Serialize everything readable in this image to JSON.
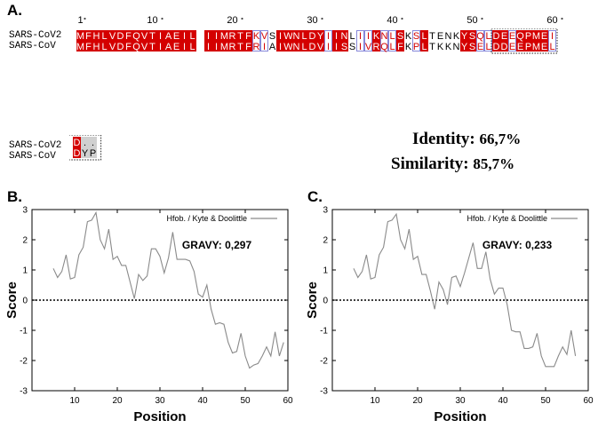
{
  "labels": {
    "a": "A.",
    "b": "B.",
    "c": "C."
  },
  "alignment": {
    "ruler": [
      "1",
      "10",
      "20",
      "30",
      "40",
      "50",
      "60"
    ],
    "names": [
      "SARS-CoV2",
      "SARS-CoV"
    ],
    "row1": {
      "seq1": "MFHLVDFQVTIAEILLIIMRTFKVSIWNLDYIINLIIKNLSKSLTENKYSQLDEEQPMEI",
      "seq2": "MFHLVDFQVTIAEILIIIMRTFRIAIWNLDVIISSIVRQLFKPLTKKNYSELDDEEPMEL",
      "styles": "RRRRRRRRRRRRRRRWRRRRRRbbTRRRRRRbRRTwbRbwRTwRTTTTRRbwRRbRRRRb"
    },
    "row2": {
      "seq1": "D..",
      "seq2": "DYP",
      "styles": "Rgg"
    }
  },
  "stats": {
    "identity_label": "Identity",
    "identity_value": "66,7%",
    "similarity_label": "Similarity",
    "similarity_value": "85,7%"
  },
  "chart_data": [
    {
      "type": "line",
      "panel": "B.",
      "xlabel": "Position",
      "ylabel": "Score",
      "xlim": [
        0,
        60
      ],
      "ylim": [
        -3,
        3
      ],
      "xticks": [
        10,
        20,
        30,
        40,
        50,
        60
      ],
      "yticks": [
        -3,
        -2,
        -1,
        0,
        1,
        2,
        3
      ],
      "legend": "Hfob. / Kyte & Doolittle",
      "legend_position": "top-right",
      "annotation": "GRAVY:  0,297",
      "reference_line": 0,
      "series": [
        {
          "name": "Hfob. / Kyte & Doolittle",
          "x": [
            5,
            6,
            7,
            8,
            9,
            10,
            11,
            12,
            13,
            14,
            15,
            16,
            17,
            18,
            19,
            20,
            21,
            22,
            23,
            24,
            25,
            26,
            27,
            28,
            29,
            30,
            31,
            32,
            33,
            34,
            35,
            36,
            37,
            38,
            39,
            40,
            41,
            42,
            43,
            44,
            45,
            46,
            47,
            48,
            49,
            50,
            51,
            52,
            53,
            54,
            55,
            56,
            57,
            58,
            59
          ],
          "y": [
            1.05,
            0.75,
            0.95,
            1.5,
            0.7,
            0.75,
            1.5,
            1.75,
            2.6,
            2.65,
            2.9,
            2.0,
            1.7,
            2.35,
            1.35,
            1.45,
            1.15,
            1.15,
            0.6,
            0.05,
            0.85,
            0.65,
            0.8,
            1.7,
            1.7,
            1.45,
            0.9,
            1.4,
            2.25,
            1.35,
            1.35,
            1.35,
            1.3,
            0.95,
            0.2,
            0.1,
            0.5,
            -0.3,
            -0.8,
            -0.75,
            -0.8,
            -1.4,
            -1.75,
            -1.7,
            -1.1,
            -1.85,
            -2.25,
            -2.15,
            -2.1,
            -1.85,
            -1.55,
            -1.85,
            -1.05,
            -1.85,
            -1.4
          ]
        }
      ]
    },
    {
      "type": "line",
      "panel": "C.",
      "xlabel": "Position",
      "ylabel": "Score",
      "xlim": [
        0,
        60
      ],
      "ylim": [
        -3,
        3
      ],
      "xticks": [
        10,
        20,
        30,
        40,
        50,
        60
      ],
      "yticks": [
        -3,
        -2,
        -1,
        0,
        1,
        2,
        3
      ],
      "legend": "Hfob. / Kyte & Doolittle",
      "legend_position": "top-right",
      "annotation": "GRAVY:  0,233",
      "reference_line": 0,
      "series": [
        {
          "name": "Hfob. / Kyte & Doolittle",
          "x": [
            5,
            6,
            7,
            8,
            9,
            10,
            11,
            12,
            13,
            14,
            15,
            16,
            17,
            18,
            19,
            20,
            21,
            22,
            23,
            24,
            25,
            26,
            27,
            28,
            29,
            30,
            31,
            32,
            33,
            34,
            35,
            36,
            37,
            38,
            39,
            40,
            41,
            42,
            43,
            44,
            45,
            46,
            47,
            48,
            49,
            50,
            51,
            52,
            53,
            54,
            55,
            56,
            57
          ],
          "y": [
            1.05,
            0.75,
            0.95,
            1.5,
            0.7,
            0.75,
            1.5,
            1.75,
            2.6,
            2.65,
            2.85,
            2.0,
            1.7,
            2.35,
            1.35,
            1.45,
            0.85,
            0.85,
            0.3,
            -0.3,
            0.6,
            0.35,
            -0.15,
            0.75,
            0.8,
            0.45,
            0.9,
            1.4,
            1.9,
            1.05,
            1.05,
            1.6,
            0.7,
            0.2,
            0.4,
            0.4,
            -0.15,
            -1.0,
            -1.05,
            -1.05,
            -1.6,
            -1.6,
            -1.55,
            -1.1,
            -1.85,
            -2.2,
            -2.2,
            -2.2,
            -1.85,
            -1.55,
            -1.8,
            -1.0,
            -1.85
          ]
        }
      ]
    }
  ]
}
